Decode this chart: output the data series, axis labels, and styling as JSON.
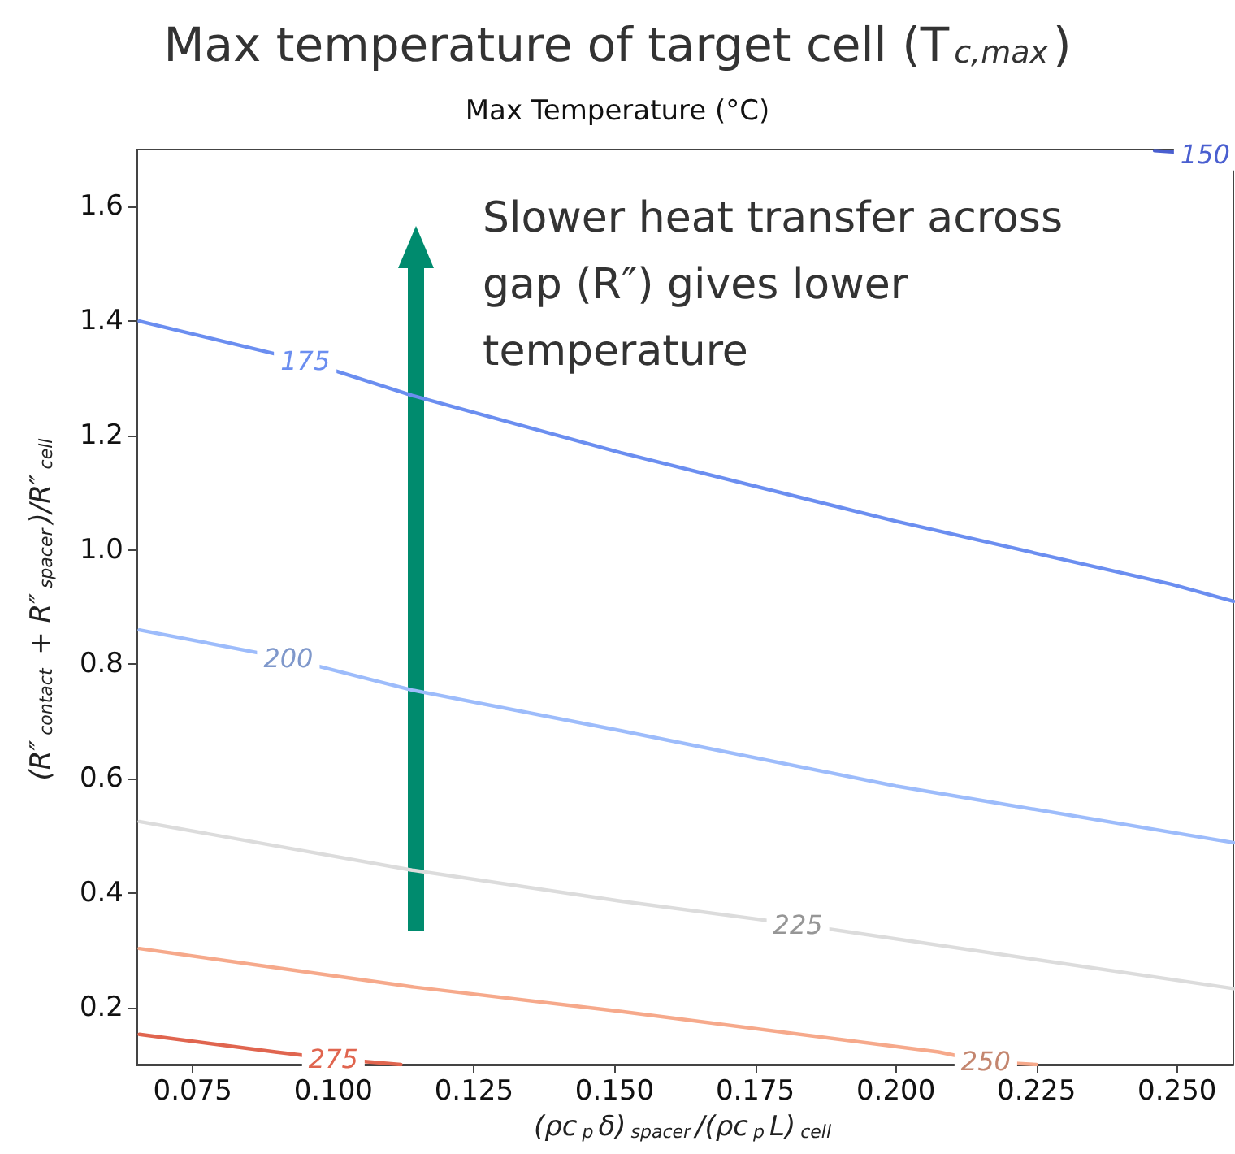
{
  "chart_data": {
    "type": "line",
    "title": "Max temperature of target cell (T$_{c,max}$)",
    "subtitle": "Max Temperature (°C)",
    "xlabel": "(ρc$_{p}$δ)$_{spacer}$/(ρc$_{p}$L)$_{cell}$",
    "ylabel": "(R″$_{contact}$ + R″$_{spacer}$)/R″$_{cell}$",
    "annotations": [
      "Slower heat transfer across gap (R″) gives lower temperature"
    ],
    "xlim": [
      0.065,
      0.26
    ],
    "ylim": [
      0.1,
      1.7
    ],
    "xticks": [
      {
        "value": 0.075,
        "label": "0.075"
      },
      {
        "value": 0.1,
        "label": "0.100"
      },
      {
        "value": 0.125,
        "label": "0.125"
      },
      {
        "value": 0.15,
        "label": "0.150"
      },
      {
        "value": 0.175,
        "label": "0.175"
      },
      {
        "value": 0.2,
        "label": "0.200"
      },
      {
        "value": 0.225,
        "label": "0.225"
      },
      {
        "value": 0.25,
        "label": "0.250"
      }
    ],
    "yticks": [
      0.2,
      0.4,
      0.6,
      0.8,
      {
        "value": 1,
        "label": "1.0"
      },
      1.2,
      1.4,
      1.6
    ],
    "grid": false,
    "legend": false,
    "marker": "none",
    "line_style": "solid",
    "series": [
      {
        "name": "150",
        "color": "#4a5fd0",
        "x": [
          0.26,
          0.255,
          0.246
        ],
        "values": [
          1.688,
          1.692,
          1.698
        ]
      },
      {
        "name": "175",
        "color": "#6b8ef0",
        "x": [
          0.0655,
          0.095,
          0.114,
          0.151,
          0.2,
          0.249,
          0.26
        ],
        "values": [
          1.4,
          1.33,
          1.27,
          1.17,
          1.05,
          0.94,
          0.91
        ]
      },
      {
        "name": "200",
        "color": "#9dbcfb",
        "x": [
          0.0655,
          0.092,
          0.114,
          0.151,
          0.2,
          0.26
        ],
        "values": [
          0.86,
          0.81,
          0.755,
          0.684,
          0.587,
          0.488
        ]
      },
      {
        "name": "225",
        "color": "#dcdcdc",
        "x": [
          0.26,
          0.1826,
          0.151,
          0.114,
          0.0655
        ],
        "values": [
          0.233,
          0.345,
          0.386,
          0.44,
          0.525
        ]
      },
      {
        "name": "250",
        "color": "#f6a98b",
        "x": [
          0.225,
          0.216,
          0.2076,
          0.151,
          0.114,
          0.0655
        ],
        "values": [
          0.1,
          0.105,
          0.122,
          0.193,
          0.236,
          0.303
        ]
      },
      {
        "name": "275",
        "color": "#e0654f",
        "x": [
          0.112,
          0.1,
          0.0897,
          0.0655
        ],
        "values": [
          0.1,
          0.11,
          0.122,
          0.153
        ]
      }
    ]
  }
}
